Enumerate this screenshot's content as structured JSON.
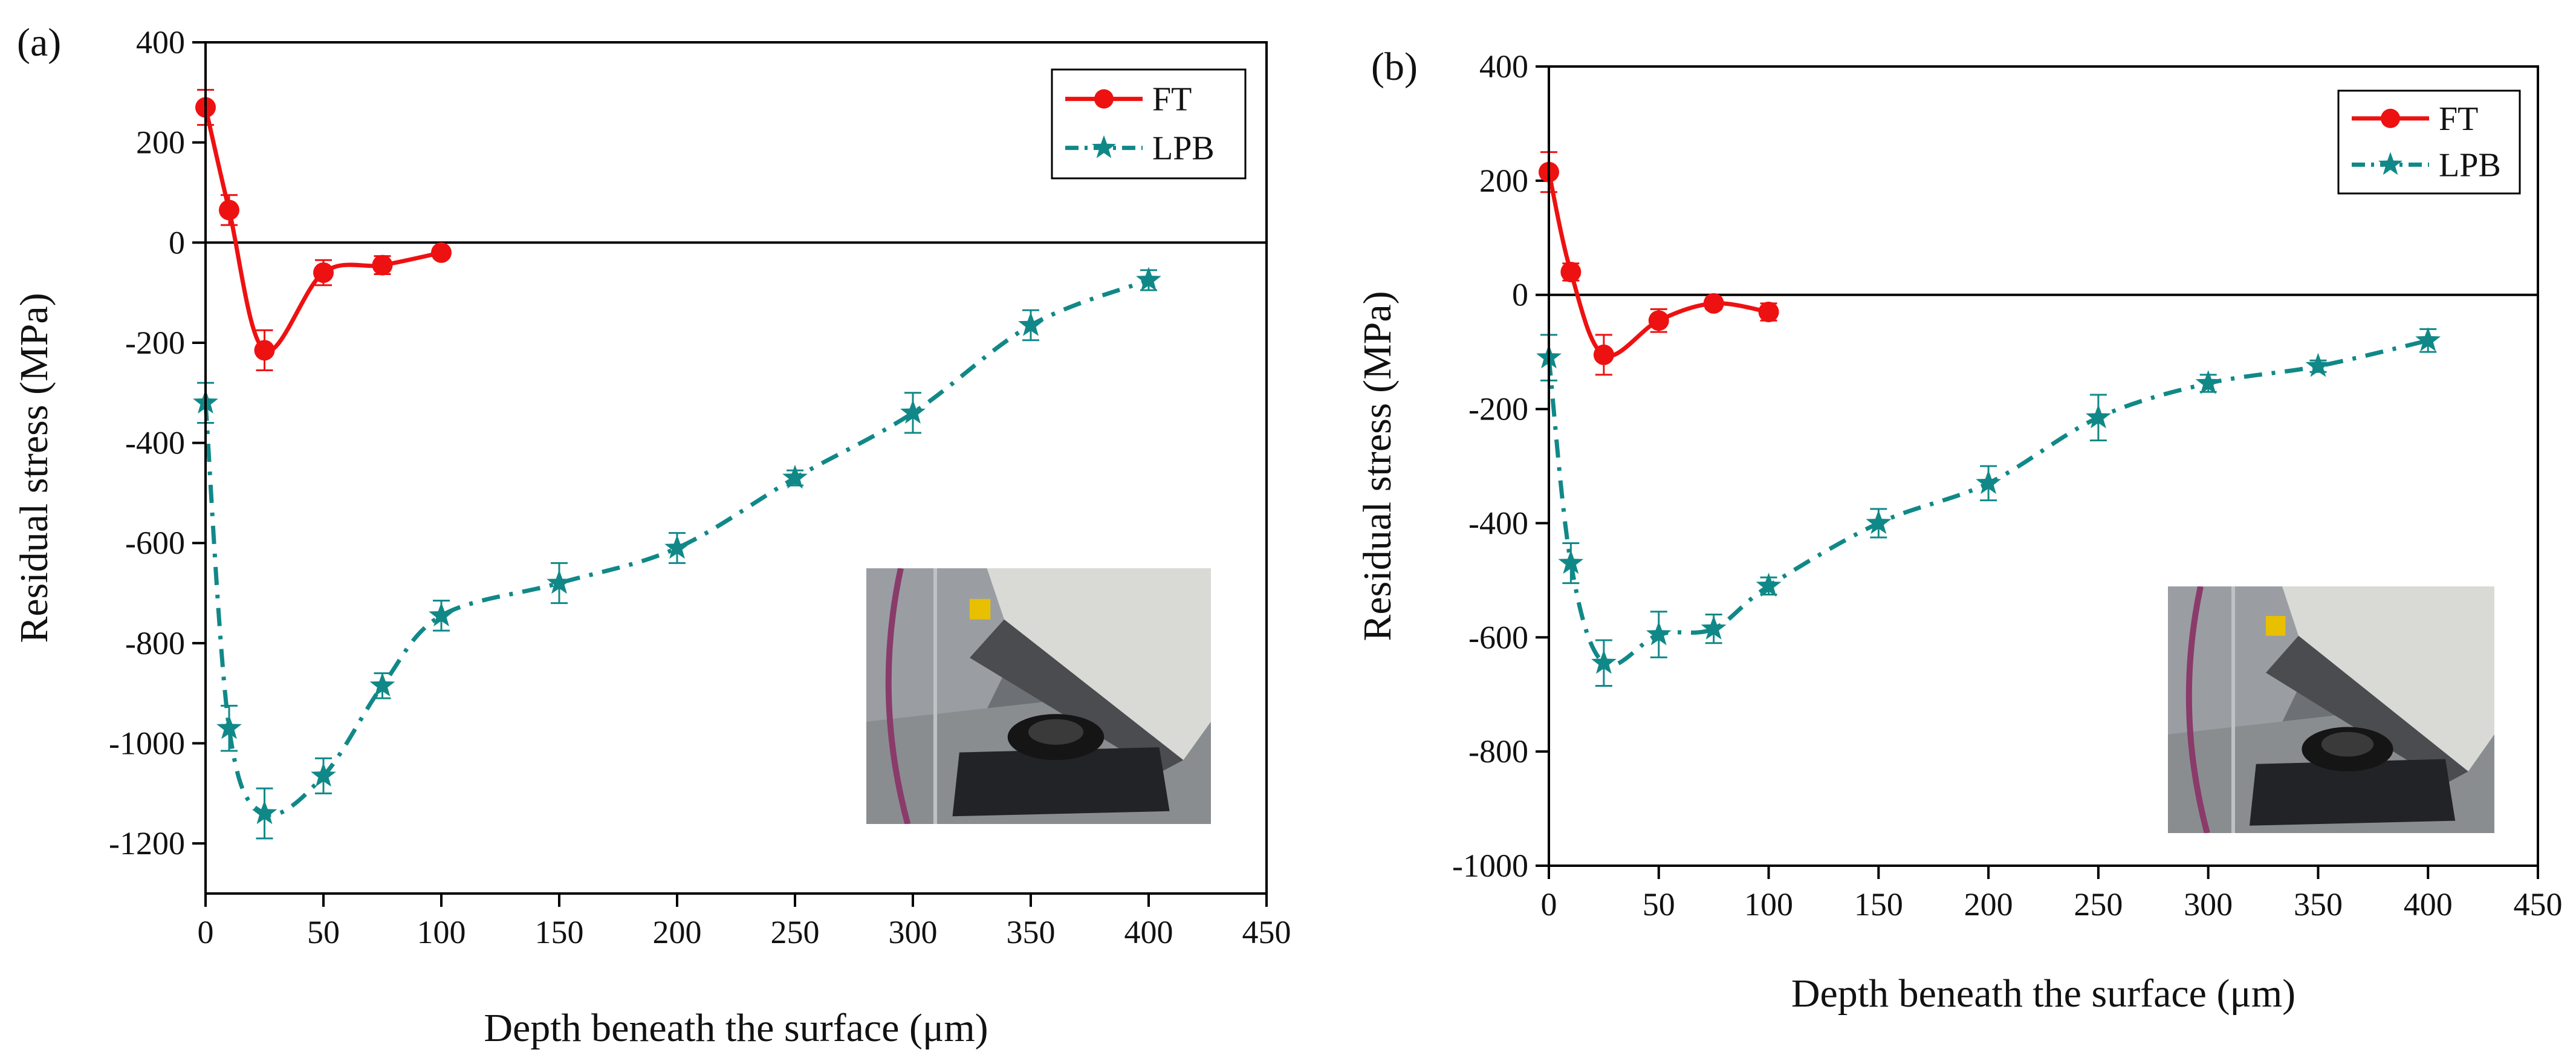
{
  "chart_data": [
    {
      "type": "line",
      "panel_label": "(a)",
      "xlabel": "Depth beneath the surface (μm)",
      "ylabel": "Residual stress (MPa)",
      "xlim": [
        0,
        450
      ],
      "ylim": [
        -1300,
        400
      ],
      "xticks": [
        0,
        50,
        100,
        150,
        200,
        250,
        300,
        350,
        400,
        450
      ],
      "yticks": [
        400,
        200,
        0,
        -200,
        -400,
        -600,
        -800,
        -1000,
        -1200
      ],
      "zero_line": true,
      "legend": {
        "position": "top-right"
      },
      "inset_photo": "xrd-instrument-photo",
      "series": [
        {
          "name": "FT",
          "color": "#ee1111",
          "marker": "circle",
          "line": "solid",
          "x": [
            0,
            10,
            25,
            50,
            75,
            100
          ],
          "y": [
            270,
            65,
            -215,
            -60,
            -45,
            -20
          ],
          "err": [
            35,
            30,
            40,
            25,
            18,
            10
          ]
        },
        {
          "name": "LPB",
          "color": "#118888",
          "marker": "star",
          "line": "dash-dot",
          "x": [
            0,
            10,
            25,
            50,
            75,
            100,
            150,
            200,
            250,
            300,
            350,
            400
          ],
          "y": [
            -320,
            -970,
            -1140,
            -1065,
            -885,
            -745,
            -680,
            -610,
            -470,
            -340,
            -165,
            -75
          ],
          "err": [
            40,
            45,
            50,
            35,
            25,
            30,
            40,
            30,
            15,
            40,
            30,
            20
          ]
        }
      ]
    },
    {
      "type": "line",
      "panel_label": "(b)",
      "xlabel": "Depth beneath the surface (μm)",
      "ylabel": "Residual stress (MPa)",
      "xlim": [
        0,
        450
      ],
      "ylim": [
        -1000,
        400
      ],
      "xticks": [
        0,
        50,
        100,
        150,
        200,
        250,
        300,
        350,
        400,
        450
      ],
      "yticks": [
        400,
        200,
        0,
        -200,
        -400,
        -600,
        -800,
        -1000
      ],
      "zero_line": true,
      "legend": {
        "position": "top-right"
      },
      "inset_photo": "xrd-instrument-photo",
      "series": [
        {
          "name": "FT",
          "color": "#ee1111",
          "marker": "circle",
          "line": "solid",
          "x": [
            0,
            10,
            25,
            50,
            75,
            100
          ],
          "y": [
            215,
            40,
            -105,
            -45,
            -15,
            -30
          ],
          "err": [
            35,
            15,
            35,
            20,
            10,
            15
          ]
        },
        {
          "name": "LPB",
          "color": "#118888",
          "marker": "star",
          "line": "dash-dot",
          "x": [
            0,
            10,
            25,
            50,
            75,
            100,
            150,
            200,
            250,
            300,
            350,
            400
          ],
          "y": [
            -110,
            -470,
            -645,
            -595,
            -585,
            -510,
            -400,
            -330,
            -215,
            -155,
            -125,
            -80
          ],
          "err": [
            40,
            35,
            40,
            40,
            25,
            15,
            25,
            30,
            40,
            15,
            10,
            20
          ]
        }
      ]
    }
  ]
}
